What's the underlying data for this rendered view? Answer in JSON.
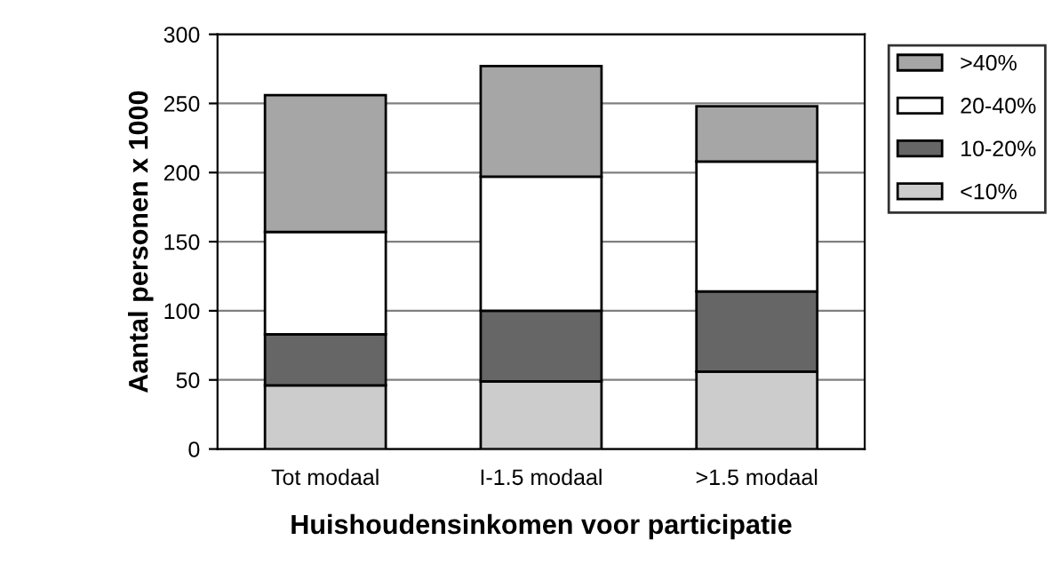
{
  "chart_data": {
    "type": "bar",
    "stacked": true,
    "xlabel": "Huishoudensinkomen voor participatie",
    "ylabel": "Aantal personen x 1000",
    "categories": [
      "Tot modaal",
      "I-1.5 modaal",
      ">1.5 modaal"
    ],
    "series": [
      {
        "name": "<10%",
        "color": "#cccccc",
        "values": [
          46,
          49,
          56
        ]
      },
      {
        "name": "10-20%",
        "color": "#666666",
        "values": [
          37,
          51,
          58
        ]
      },
      {
        "name": "20-40%",
        "color": "#ffffff",
        "values": [
          74,
          97,
          94
        ]
      },
      {
        "name": ">40%",
        "color": "#a6a6a6",
        "values": [
          99,
          80,
          40
        ]
      }
    ],
    "ylim": [
      0,
      300
    ],
    "yticks": [
      0,
      50,
      100,
      150,
      200,
      250,
      300
    ],
    "grid": "y",
    "legend": "top right"
  }
}
